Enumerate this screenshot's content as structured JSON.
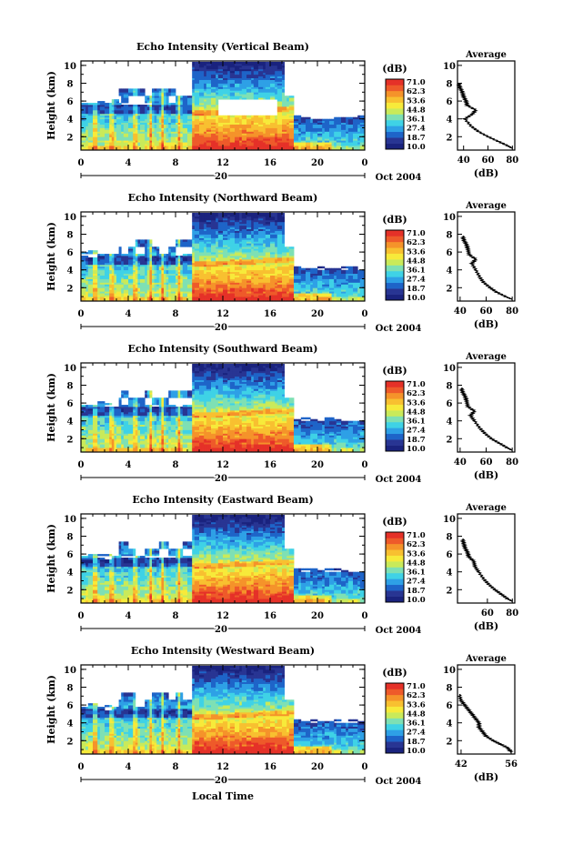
{
  "figure": {
    "bottom_xlabel": "Local Time",
    "date_label": "Oct 2004",
    "day_label": "20",
    "x_ticks": [
      "0",
      "4",
      "8",
      "12",
      "16",
      "20",
      "0"
    ],
    "y_ticks": [
      "2",
      "4",
      "6",
      "8",
      "10"
    ],
    "ylabel": "Height (km)",
    "colorbar_title": "(dB)",
    "colorbar_ticks": [
      "71.0",
      "62.3",
      "53.6",
      "44.8",
      "36.1",
      "27.4",
      "18.7",
      "10.0"
    ],
    "avg_title": "Average",
    "avg_xlabel": "(dB)",
    "colormap": [
      "#1a237e",
      "#283593",
      "#1e64c8",
      "#2ea0e6",
      "#3fd2e6",
      "#7ee0b4",
      "#c9ea5a",
      "#f7ea3a",
      "#f8c030",
      "#f5932a",
      "#ee5a2a",
      "#e53128"
    ]
  },
  "chart_data": [
    {
      "type": "heatmap",
      "title": "Echo Intensity (Vertical Beam)",
      "xlabel": "",
      "ylabel": "Height (km)",
      "xlim": [
        0,
        24
      ],
      "ylim": [
        0.5,
        10.5
      ],
      "colorbar": {
        "label": "(dB)",
        "range": [
          10.0,
          71.0
        ],
        "ticks": [
          71.0,
          62.3,
          53.6,
          44.8,
          36.1,
          27.4,
          18.7,
          10.0
        ]
      },
      "average_profile": {
        "title": "Average",
        "xlabel": "(dB)",
        "x_ticks": [
          40,
          60,
          80
        ],
        "xlim": [
          35,
          82
        ],
        "y_ticks": [
          2,
          4,
          6,
          8,
          10
        ],
        "profile": [
          [
            80,
            0.7
          ],
          [
            76,
            1.0
          ],
          [
            68,
            1.5
          ],
          [
            60,
            2.0
          ],
          [
            52,
            2.6
          ],
          [
            46,
            3.2
          ],
          [
            41,
            4.0
          ],
          [
            47,
            4.5
          ],
          [
            50,
            5.0
          ],
          [
            43,
            5.5
          ],
          [
            42,
            6.0
          ],
          [
            40,
            6.5
          ],
          [
            39,
            7.0
          ],
          [
            37,
            7.5
          ],
          [
            36,
            8.0
          ]
        ]
      }
    },
    {
      "type": "heatmap",
      "title": "Echo Intensity (Northward Beam)",
      "xlabel": "",
      "ylabel": "Height (km)",
      "xlim": [
        0,
        24
      ],
      "ylim": [
        0.5,
        10.5
      ],
      "colorbar": {
        "label": "(dB)",
        "range": [
          10.0,
          71.0
        ],
        "ticks": [
          71.0,
          62.3,
          53.6,
          44.8,
          36.1,
          27.4,
          18.7,
          10.0
        ]
      },
      "average_profile": {
        "title": "Average",
        "xlabel": "(dB)",
        "x_ticks": [
          40,
          60,
          80
        ],
        "xlim": [
          38,
          82
        ],
        "y_ticks": [
          2,
          4,
          6,
          8,
          10
        ],
        "profile": [
          [
            80,
            0.7
          ],
          [
            75,
            1.0
          ],
          [
            68,
            1.5
          ],
          [
            63,
            2.0
          ],
          [
            58,
            2.6
          ],
          [
            55,
            3.2
          ],
          [
            52,
            4.0
          ],
          [
            49,
            4.7
          ],
          [
            52,
            5.2
          ],
          [
            47,
            5.7
          ],
          [
            46,
            6.3
          ],
          [
            45,
            6.8
          ],
          [
            43,
            7.3
          ],
          [
            42,
            7.8
          ]
        ]
      }
    },
    {
      "type": "heatmap",
      "title": "Echo Intensity (Southward Beam)",
      "xlabel": "",
      "ylabel": "Height (km)",
      "xlim": [
        0,
        24
      ],
      "ylim": [
        0.5,
        10.5
      ],
      "colorbar": {
        "label": "(dB)",
        "range": [
          10.0,
          71.0
        ],
        "ticks": [
          71.0,
          62.3,
          53.6,
          44.8,
          36.1,
          27.4,
          18.7,
          10.0
        ]
      },
      "average_profile": {
        "title": "Average",
        "xlabel": "(dB)",
        "x_ticks": [
          40,
          60,
          80
        ],
        "xlim": [
          38,
          82
        ],
        "y_ticks": [
          2,
          4,
          6,
          8,
          10
        ],
        "profile": [
          [
            80,
            0.7
          ],
          [
            76,
            1.0
          ],
          [
            70,
            1.5
          ],
          [
            64,
            2.0
          ],
          [
            59,
            2.6
          ],
          [
            55,
            3.2
          ],
          [
            51,
            4.0
          ],
          [
            48,
            4.6
          ],
          [
            51,
            5.1
          ],
          [
            46,
            5.6
          ],
          [
            45,
            6.2
          ],
          [
            44,
            6.7
          ],
          [
            42,
            7.2
          ],
          [
            41,
            7.7
          ]
        ]
      }
    },
    {
      "type": "heatmap",
      "title": "Echo Intensity (Eastward Beam)",
      "xlabel": "",
      "ylabel": "Height (km)",
      "xlim": [
        0,
        24
      ],
      "ylim": [
        0.5,
        10.5
      ],
      "colorbar": {
        "label": "(dB)",
        "range": [
          10.0,
          71.0
        ],
        "ticks": [
          71.0,
          62.3,
          53.6,
          44.8,
          36.1,
          27.4,
          18.7,
          10.0
        ]
      },
      "average_profile": {
        "title": "Average",
        "xlabel": "(dB)",
        "x_ticks": [
          60,
          80
        ],
        "xlim": [
          36,
          82
        ],
        "y_ticks": [
          2,
          4,
          6,
          8,
          10
        ],
        "profile": [
          [
            80,
            0.7
          ],
          [
            76,
            1.0
          ],
          [
            71,
            1.5
          ],
          [
            66,
            2.0
          ],
          [
            61,
            2.6
          ],
          [
            57,
            3.2
          ],
          [
            53,
            4.0
          ],
          [
            50,
            4.6
          ],
          [
            49,
            5.2
          ],
          [
            45,
            5.7
          ],
          [
            44,
            6.2
          ],
          [
            42,
            6.7
          ],
          [
            41,
            7.2
          ],
          [
            40,
            7.7
          ]
        ]
      }
    },
    {
      "type": "heatmap",
      "title": "Echo Intensity (Westward Beam)",
      "xlabel": "Local Time",
      "ylabel": "Height (km)",
      "xlim": [
        0,
        24
      ],
      "ylim": [
        0.5,
        10.5
      ],
      "colorbar": {
        "label": "(dB)",
        "range": [
          10.0,
          71.0
        ],
        "ticks": [
          71.0,
          62.3,
          53.6,
          44.8,
          36.1,
          27.4,
          18.7,
          10.0
        ]
      },
      "average_profile": {
        "title": "Average",
        "xlabel": "(dB)",
        "x_ticks": [
          42,
          56
        ],
        "xlim": [
          41,
          57
        ],
        "y_ticks": [
          2,
          4,
          6,
          8,
          10
        ],
        "profile": [
          [
            56,
            0.7
          ],
          [
            55,
            1.2
          ],
          [
            53,
            1.6
          ],
          [
            51,
            2.0
          ],
          [
            49,
            2.5
          ],
          [
            48,
            3.0
          ],
          [
            47,
            3.5
          ],
          [
            47,
            4.0
          ],
          [
            46,
            4.5
          ],
          [
            45,
            5.0
          ],
          [
            44,
            5.5
          ],
          [
            43,
            6.0
          ],
          [
            42,
            6.5
          ],
          [
            41.5,
            7.2
          ]
        ]
      }
    }
  ]
}
